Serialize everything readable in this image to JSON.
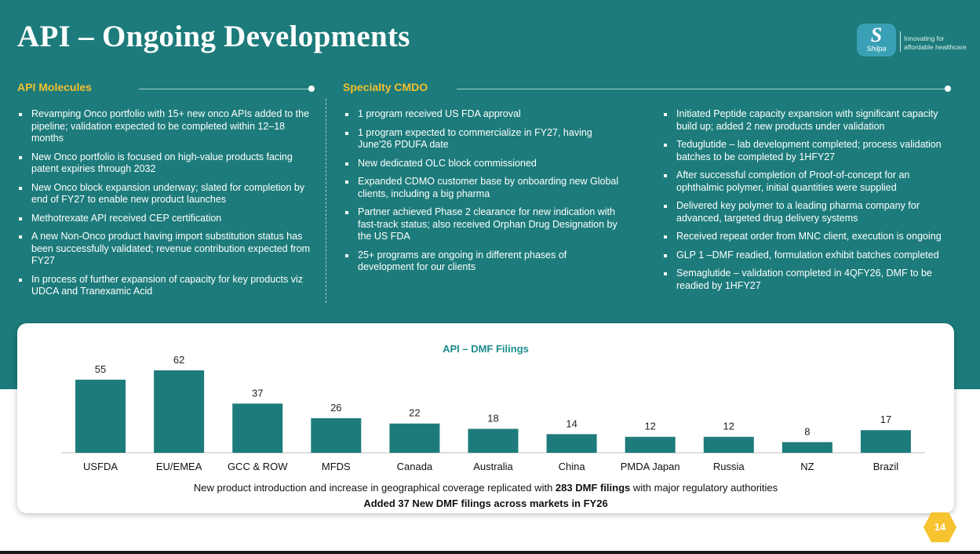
{
  "header": {
    "title": "API – Ongoing Developments",
    "logo": {
      "mark_letter": "S",
      "brand": "Shilpa",
      "tagline": "Innovating for affordable healthcare"
    }
  },
  "sections": {
    "api_molecules": {
      "heading": "API Molecules",
      "items": [
        "Revamping Onco portfolio with 15+ new onco APIs added to the pipeline; validation expected to be completed within 12–18 months",
        "New Onco portfolio is focused on high-value products facing patent expiries through 2032",
        "New Onco block expansion underway; slated for completion by end of FY27 to enable new product launches",
        "Methotrexate API received CEP certification",
        "A new Non-Onco product having import substitution status has been successfully validated; revenue contribution expected from FY27",
        "In process of further expansion of capacity for key products viz UDCA and Tranexamic Acid"
      ]
    },
    "specialty_cmdo": {
      "heading": "Specialty CMDO",
      "items_left": [
        "1 program received US FDA approval",
        "1 program expected to commercialize in FY27, having June'26 PDUFA date",
        "New dedicated OLC block commissioned",
        "Expanded CDMO customer base by onboarding new Global clients, including a big pharma",
        "Partner achieved Phase 2 clearance for new indication with fast-track status; also received Orphan Drug Designation by the US FDA",
        "25+ programs are ongoing in different phases of development for our clients"
      ],
      "items_right": [
        "Initiated Peptide capacity expansion with significant capacity build up; added 2 new products under validation",
        "Teduglutide – lab development completed; process validation batches to be completed by 1HFY27",
        "After successful completion of Proof-of-concept for an ophthalmic polymer, initial quantities were supplied",
        "Delivered key polymer to a leading pharma company for advanced, targeted drug delivery systems",
        "Received repeat order from MNC client, execution is ongoing",
        "GLP 1 –DMF readied, formulation exhibit batches completed",
        "Semaglutide – validation completed in 4QFY26, DMF to be readied by 1HFY27"
      ]
    }
  },
  "chart_data": {
    "type": "bar",
    "title": "API – DMF Filings",
    "categories": [
      "USFDA",
      "EU/EMEA",
      "GCC & ROW",
      "MFDS",
      "Canada",
      "Australia",
      "China",
      "PMDA Japan",
      "Russia",
      "NZ",
      "Brazil"
    ],
    "values": [
      55,
      62,
      37,
      26,
      22,
      18,
      14,
      12,
      12,
      8,
      17
    ],
    "xlabel": "",
    "ylabel": "",
    "ylim": [
      0,
      62
    ],
    "grid": false,
    "bar_color": "#1d7b7b",
    "data_labels": true
  },
  "captions": {
    "line1_prefix": "New product introduction and increase in geographical coverage replicated with ",
    "line1_bold": "283 DMF filings",
    "line1_suffix": " with major regulatory authorities",
    "line2": "Added 37 New DMF filings across markets in FY26"
  },
  "page_number": "14",
  "colors": {
    "teal": "#1d7b7b",
    "accent_yellow": "#f2c12e",
    "chart_title": "#1d8c8c",
    "badge": "#f7c32e"
  }
}
